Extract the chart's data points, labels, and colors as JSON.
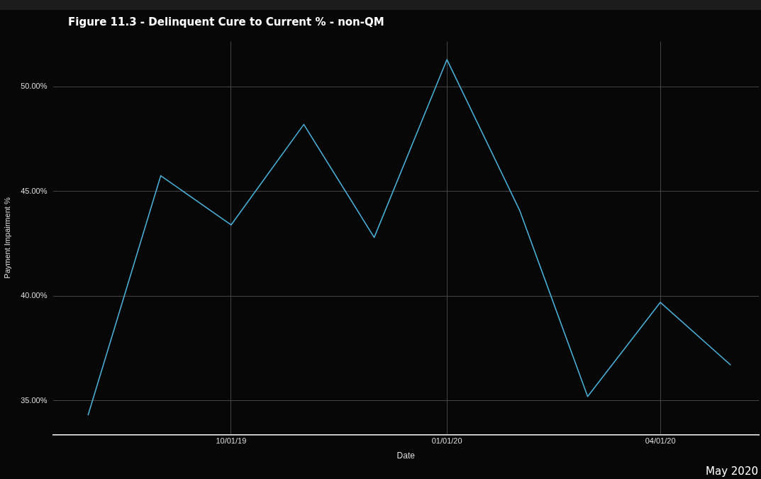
{
  "chart_data": {
    "type": "line",
    "title": "Figure 11.3 - Delinquent Cure to Current % - non-QM",
    "xlabel": "Date",
    "ylabel": "Payment Impairment %",
    "x": [
      "2019-08-01",
      "2019-09-01",
      "2019-10-01",
      "2019-11-01",
      "2019-12-01",
      "2020-01-01",
      "2020-02-01",
      "2020-03-01",
      "2020-04-01",
      "2020-05-01"
    ],
    "series": [
      {
        "color": "#4aaed6",
        "values": [
          34.3,
          45.75,
          43.4,
          48.2,
          42.8,
          51.3,
          44.1,
          35.2,
          39.7,
          36.7
        ]
      }
    ],
    "xlim": [
      "2019-07-17",
      "2020-05-13"
    ],
    "xticks": [
      {
        "value": "2019-10-01",
        "label": "10/01/19"
      },
      {
        "value": "2020-01-01",
        "label": "01/01/20"
      },
      {
        "value": "2020-04-01",
        "label": "04/01/20"
      }
    ],
    "ylim": [
      33.38,
      52.16
    ],
    "yticks": [
      {
        "value": 35,
        "label": "35.00%"
      },
      {
        "value": 40,
        "label": "40.00%"
      },
      {
        "value": 45,
        "label": "45.00%"
      },
      {
        "value": 50,
        "label": "50.00%"
      }
    ],
    "grid": true,
    "legend": false,
    "marker": "none",
    "line_style": "solid",
    "annotations": [
      "May 2020"
    ]
  }
}
